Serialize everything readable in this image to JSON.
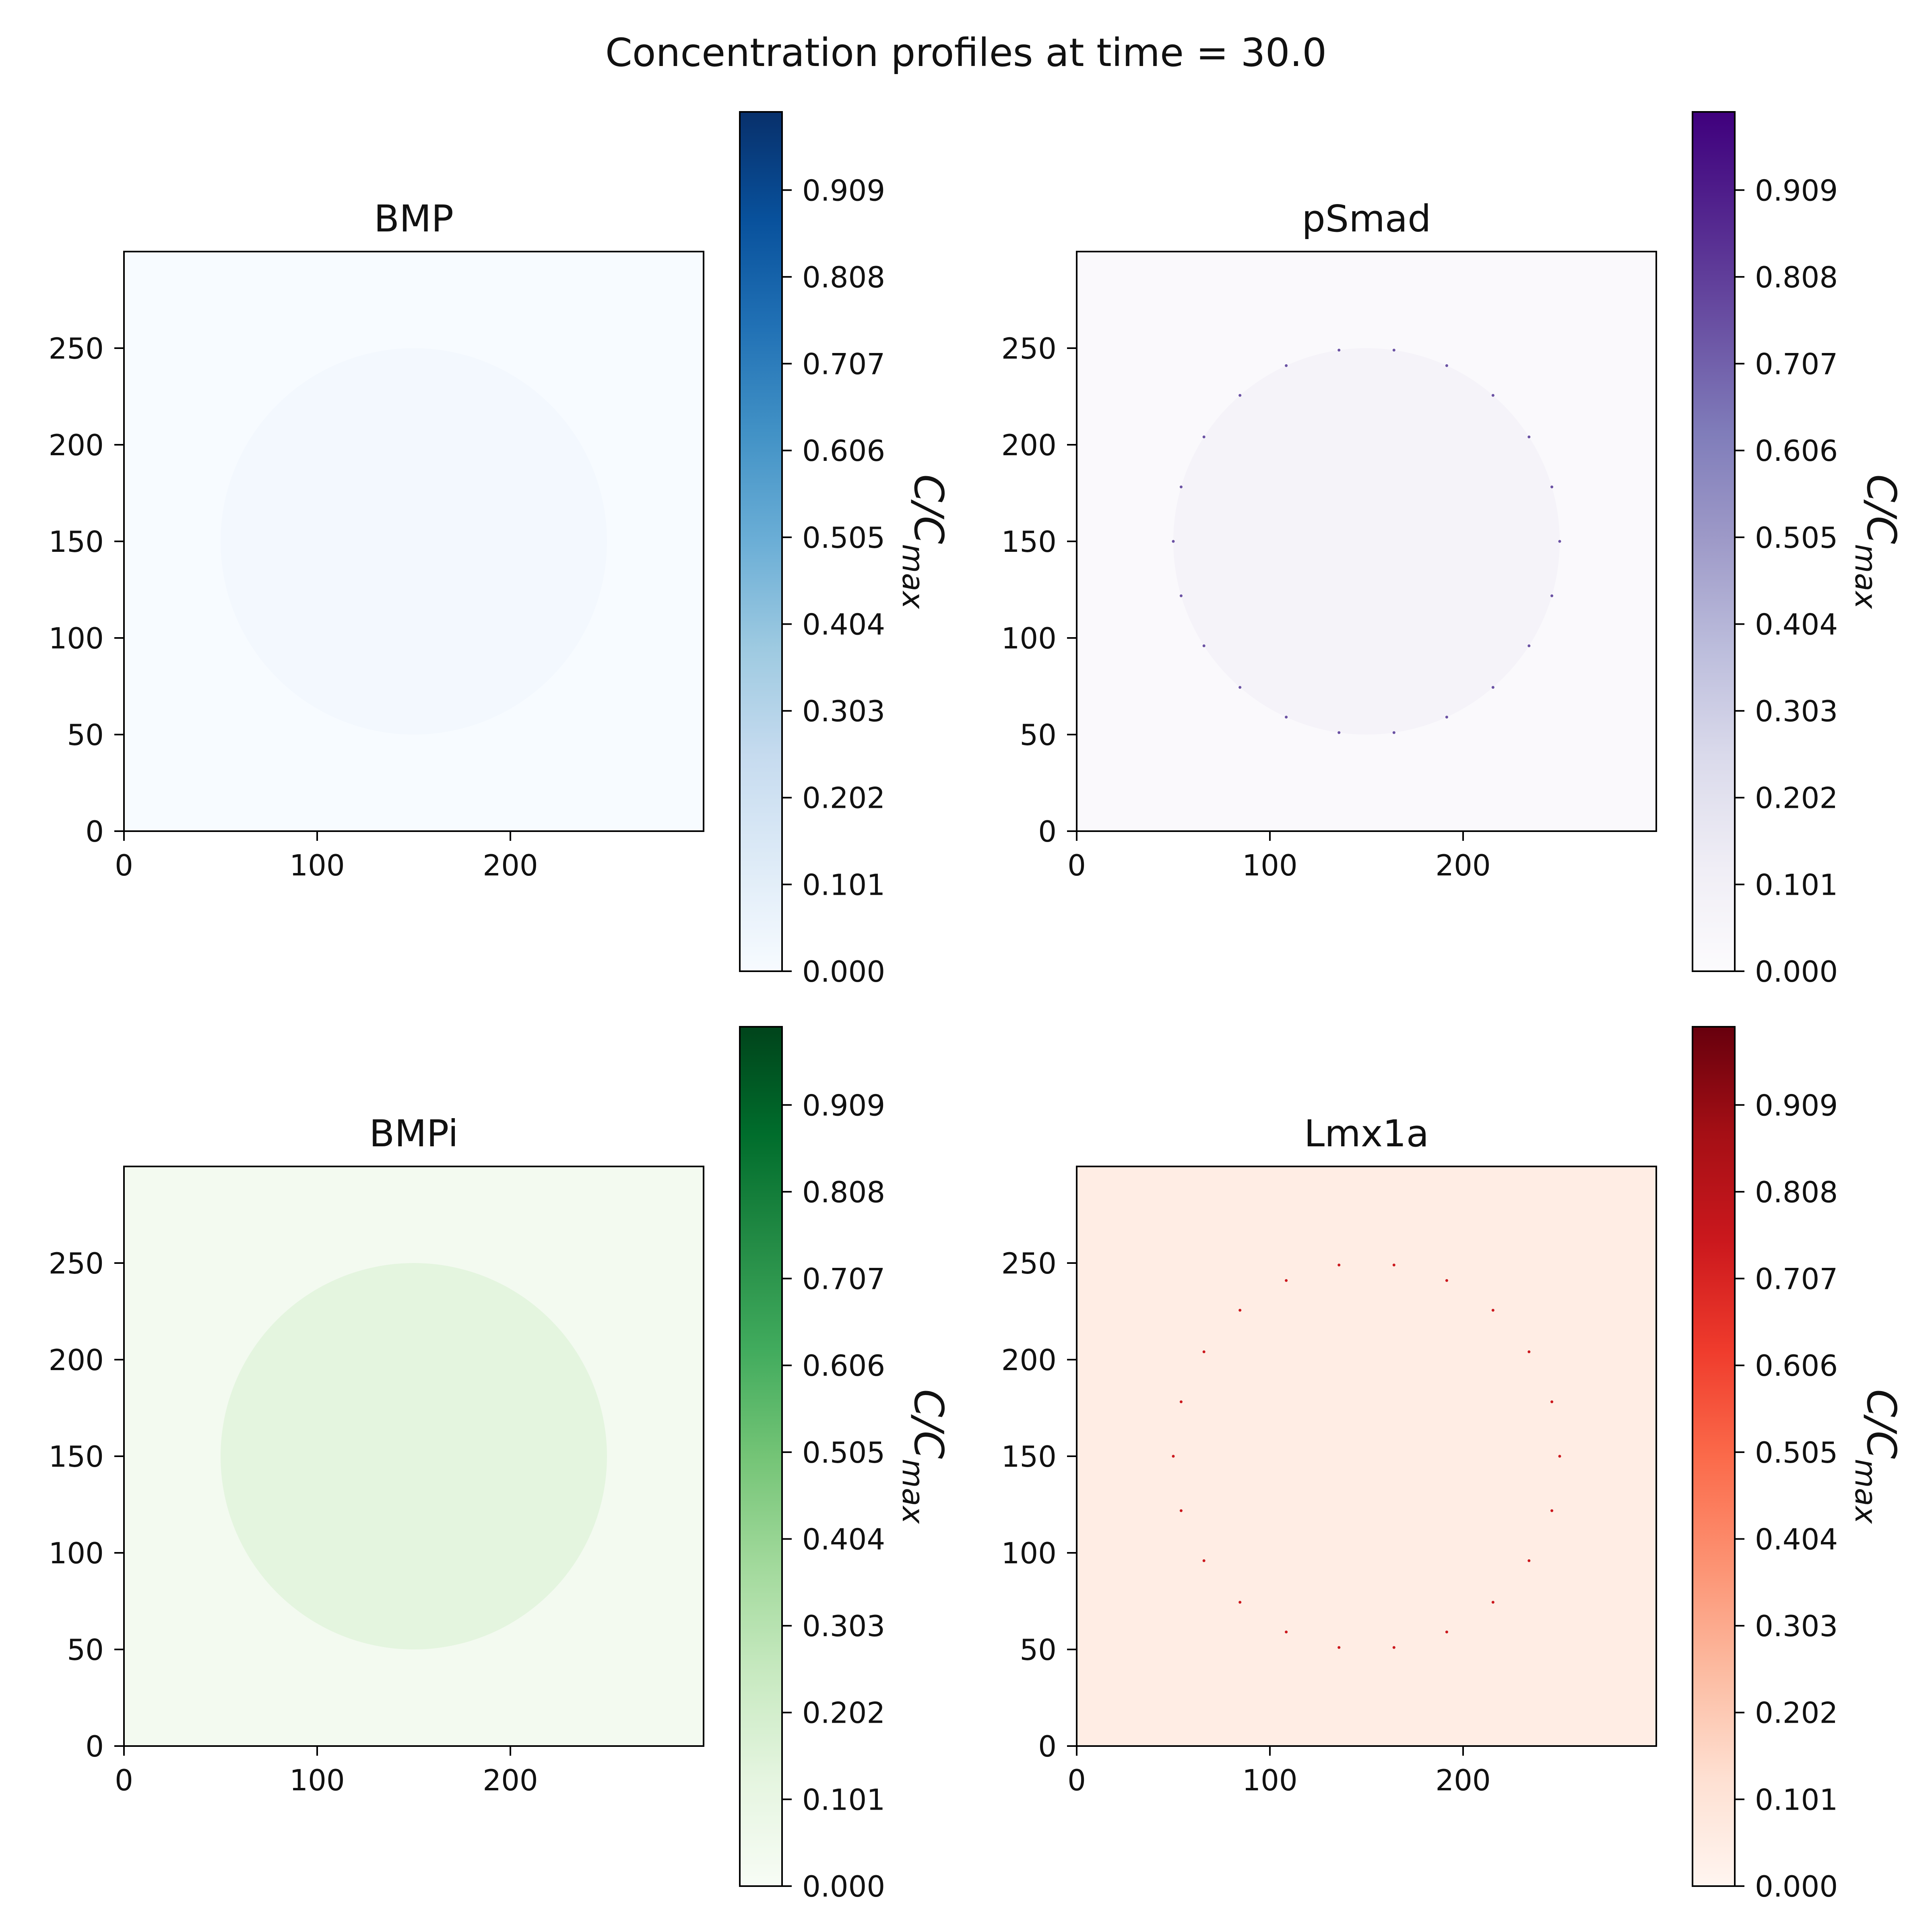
{
  "figure": {
    "title": "Concentration profiles at time = 30.0"
  },
  "chart_data": [
    {
      "type": "heatmap",
      "title": "BMP",
      "xlabel": "",
      "ylabel": "",
      "xlim": [
        0,
        300
      ],
      "ylim": [
        0,
        300
      ],
      "x_ticks": [
        "0",
        "100",
        "200"
      ],
      "y_ticks": [
        "0",
        "50",
        "100",
        "150",
        "200",
        "250"
      ],
      "colormap": "Blues",
      "colormap_stops": [
        "#f7fbff",
        "#deebf7",
        "#c6dbef",
        "#9ecae1",
        "#6baed6",
        "#4292c6",
        "#2171b5",
        "#08519c",
        "#08306b"
      ],
      "colorbar": {
        "label": "C/C_max",
        "label_main": "C/C",
        "label_sub": "max",
        "range": [
          0,
          1
        ],
        "ticks": [
          "0.000",
          "0.101",
          "0.202",
          "0.303",
          "0.404",
          "0.505",
          "0.606",
          "0.707",
          "0.808",
          "0.909"
        ]
      },
      "regions": [
        {
          "name": "background",
          "value": 0.0
        },
        {
          "name": "disc",
          "center": [
            150,
            150
          ],
          "radius": 100,
          "value": 0.02
        }
      ],
      "boundary_markers": false
    },
    {
      "type": "heatmap",
      "title": "pSmad",
      "xlabel": "",
      "ylabel": "",
      "xlim": [
        0,
        300
      ],
      "ylim": [
        0,
        300
      ],
      "x_ticks": [
        "0",
        "100",
        "200"
      ],
      "y_ticks": [
        "0",
        "50",
        "100",
        "150",
        "200",
        "250"
      ],
      "colormap": "Purples",
      "colormap_stops": [
        "#fcfbfd",
        "#efedf5",
        "#dadaeb",
        "#bcbddc",
        "#9e9ac8",
        "#807dba",
        "#6a51a3",
        "#54278f",
        "#3f007d"
      ],
      "colorbar": {
        "label": "C/C_max",
        "label_main": "C/C",
        "label_sub": "max",
        "range": [
          0,
          1
        ],
        "ticks": [
          "0.000",
          "0.101",
          "0.202",
          "0.303",
          "0.404",
          "0.505",
          "0.606",
          "0.707",
          "0.808",
          "0.909"
        ]
      },
      "regions": [
        {
          "name": "background",
          "value": 0.02
        },
        {
          "name": "disc",
          "center": [
            150,
            150
          ],
          "radius": 100,
          "value": 0.07
        }
      ],
      "boundary_markers": true
    },
    {
      "type": "heatmap",
      "title": "BMPi",
      "xlabel": "",
      "ylabel": "",
      "xlim": [
        0,
        300
      ],
      "ylim": [
        0,
        300
      ],
      "x_ticks": [
        "0",
        "100",
        "200"
      ],
      "y_ticks": [
        "0",
        "50",
        "100",
        "150",
        "200",
        "250"
      ],
      "colormap": "Greens",
      "colormap_stops": [
        "#f7fcf5",
        "#e5f5e0",
        "#c7e9c0",
        "#a1d99b",
        "#74c476",
        "#41ab5d",
        "#238b45",
        "#006d2c",
        "#00441b"
      ],
      "colorbar": {
        "label": "C/C_max",
        "label_main": "C/C",
        "label_sub": "max",
        "range": [
          0,
          1
        ],
        "ticks": [
          "0.000",
          "0.101",
          "0.202",
          "0.303",
          "0.404",
          "0.505",
          "0.606",
          "0.707",
          "0.808",
          "0.909"
        ]
      },
      "regions": [
        {
          "name": "background",
          "value": 0.03
        },
        {
          "name": "disc",
          "center": [
            150,
            150
          ],
          "radius": 100,
          "value": 0.13
        }
      ],
      "boundary_markers": false
    },
    {
      "type": "heatmap",
      "title": "Lmx1a",
      "xlabel": "",
      "ylabel": "",
      "xlim": [
        0,
        300
      ],
      "ylim": [
        0,
        300
      ],
      "x_ticks": [
        "0",
        "100",
        "200"
      ],
      "y_ticks": [
        "0",
        "50",
        "100",
        "150",
        "200",
        "250"
      ],
      "colormap": "Reds",
      "colormap_stops": [
        "#fff5f0",
        "#fee0d2",
        "#fcbba1",
        "#fc9272",
        "#fb6a4a",
        "#ef3b2c",
        "#cb181d",
        "#a50f15",
        "#67000d"
      ],
      "colorbar": {
        "label": "C/C_max",
        "label_main": "C/C",
        "label_sub": "max",
        "range": [
          0,
          1
        ],
        "ticks": [
          "0.000",
          "0.101",
          "0.202",
          "0.303",
          "0.404",
          "0.505",
          "0.606",
          "0.707",
          "0.808",
          "0.909"
        ]
      },
      "regions": [
        {
          "name": "background",
          "value": 0.05
        },
        {
          "name": "disc",
          "center": [
            150,
            150
          ],
          "radius": 100,
          "value": 0.05
        }
      ],
      "boundary_markers": true
    }
  ]
}
